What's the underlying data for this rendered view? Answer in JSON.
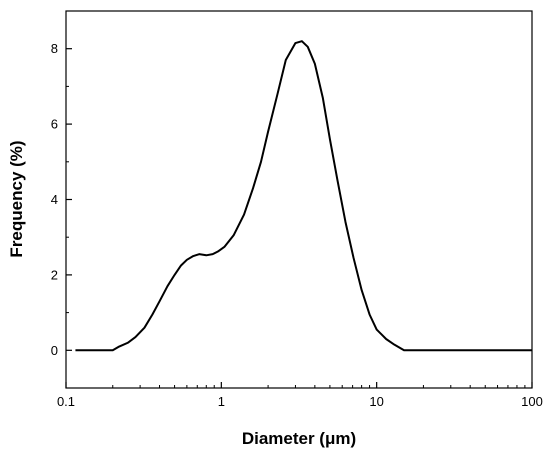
{
  "chart_data": {
    "type": "line",
    "title": "",
    "xlabel": "Diameter (μm)",
    "ylabel": "Frequency (%)",
    "xscale": "log",
    "xlim": [
      0.1,
      100
    ],
    "ylim": [
      -1,
      9
    ],
    "xticks": [
      0.1,
      1,
      10,
      100
    ],
    "xtick_labels": [
      "0.1",
      "1",
      "10",
      "100"
    ],
    "yticks": [
      0,
      2,
      4,
      6,
      8
    ],
    "ytick_labels": [
      "0",
      "2",
      "4",
      "6",
      "8"
    ],
    "grid": false,
    "legend": "none",
    "line_color": "#000000",
    "series": [
      {
        "x": [
          0.115,
          0.2,
          0.22,
          0.25,
          0.28,
          0.32,
          0.36,
          0.4,
          0.45,
          0.5,
          0.55,
          0.6,
          0.66,
          0.72,
          0.8,
          0.88,
          0.95,
          1.05,
          1.2,
          1.4,
          1.6,
          1.8,
          2.0,
          2.3,
          2.6,
          3.0,
          3.3,
          3.6,
          4.0,
          4.5,
          5.0,
          5.6,
          6.3,
          7.1,
          8.0,
          9.0,
          10.0,
          11.5,
          13.0,
          15.0,
          20.0,
          100.0
        ],
        "y": [
          0,
          0,
          0.1,
          0.2,
          0.35,
          0.6,
          0.95,
          1.3,
          1.7,
          2.0,
          2.25,
          2.4,
          2.5,
          2.55,
          2.52,
          2.55,
          2.62,
          2.75,
          3.05,
          3.6,
          4.3,
          5.0,
          5.8,
          6.8,
          7.7,
          8.15,
          8.2,
          8.05,
          7.6,
          6.7,
          5.6,
          4.5,
          3.4,
          2.45,
          1.6,
          0.95,
          0.55,
          0.3,
          0.15,
          0,
          0,
          0
        ]
      }
    ]
  }
}
